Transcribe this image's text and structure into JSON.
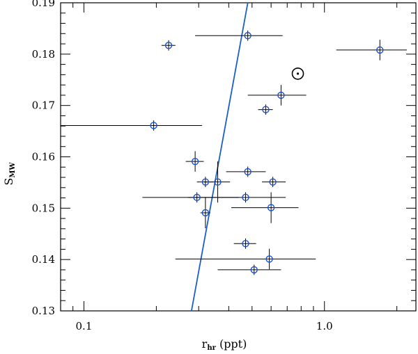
{
  "chart_data": {
    "type": "scatter",
    "title": "",
    "xlabel": "r",
    "xlabel_sub": "hr",
    "xlabel_unit": " (ppt)",
    "ylabel": "S",
    "ylabel_sub": "MW",
    "xscale": "log",
    "xlim": [
      0.08,
      2.4
    ],
    "ylim": [
      0.13,
      0.19
    ],
    "x_ticks": [
      {
        "value": 0.1,
        "label": "0.1"
      },
      {
        "value": 1.0,
        "label": "1.0"
      }
    ],
    "y_ticks": [
      {
        "value": 0.13,
        "label": "0.13"
      },
      {
        "value": 0.14,
        "label": "0.14"
      },
      {
        "value": 0.15,
        "label": "0.15"
      },
      {
        "value": 0.16,
        "label": "0.16"
      },
      {
        "value": 0.17,
        "label": "0.17"
      },
      {
        "value": 0.18,
        "label": "0.18"
      },
      {
        "value": 0.19,
        "label": "0.19"
      }
    ],
    "points": [
      {
        "x": 0.225,
        "y": 0.1817,
        "xlo": 0.21,
        "xhi": 0.24,
        "ylo": 0.1807,
        "yhi": 0.1827
      },
      {
        "x": 0.48,
        "y": 0.1836,
        "xlo": 0.29,
        "xhi": 0.67,
        "ylo": 0.1826,
        "yhi": 0.1846
      },
      {
        "x": 1.7,
        "y": 0.1808,
        "xlo": 1.12,
        "xhi": 2.2,
        "ylo": 0.1788,
        "yhi": 0.1828
      },
      {
        "x": 0.66,
        "y": 0.172,
        "xlo": 0.48,
        "xhi": 0.84,
        "ylo": 0.17,
        "yhi": 0.174
      },
      {
        "x": 0.57,
        "y": 0.1692,
        "xlo": 0.53,
        "xhi": 0.61,
        "ylo": 0.1682,
        "yhi": 0.1702
      },
      {
        "x": 0.195,
        "y": 0.1661,
        "xlo": 0.08,
        "xhi": 0.31,
        "ylo": 0.1651,
        "yhi": 0.1671
      },
      {
        "x": 0.29,
        "y": 0.1591,
        "xlo": 0.265,
        "xhi": 0.315,
        "ylo": 0.1571,
        "yhi": 0.1611
      },
      {
        "x": 0.48,
        "y": 0.1571,
        "xlo": 0.39,
        "xhi": 0.57,
        "ylo": 0.1561,
        "yhi": 0.1581
      },
      {
        "x": 0.32,
        "y": 0.1551,
        "xlo": 0.295,
        "xhi": 0.345,
        "ylo": 0.1541,
        "yhi": 0.1561
      },
      {
        "x": 0.36,
        "y": 0.1551,
        "xlo": 0.315,
        "xhi": 0.405,
        "ylo": 0.1511,
        "yhi": 0.1591
      },
      {
        "x": 0.61,
        "y": 0.1551,
        "xlo": 0.55,
        "xhi": 0.69,
        "ylo": 0.1541,
        "yhi": 0.1561
      },
      {
        "x": 0.295,
        "y": 0.1521,
        "xlo": 0.175,
        "xhi": 0.44,
        "ylo": 0.1511,
        "yhi": 0.1531
      },
      {
        "x": 0.47,
        "y": 0.1521,
        "xlo": 0.27,
        "xhi": 0.69,
        "ylo": 0.1511,
        "yhi": 0.1531
      },
      {
        "x": 0.6,
        "y": 0.1501,
        "xlo": 0.41,
        "xhi": 0.78,
        "ylo": 0.1471,
        "yhi": 0.1531
      },
      {
        "x": 0.32,
        "y": 0.1491,
        "xlo": 0.305,
        "xhi": 0.335,
        "ylo": 0.1461,
        "yhi": 0.1521
      },
      {
        "x": 0.47,
        "y": 0.1431,
        "xlo": 0.42,
        "xhi": 0.52,
        "ylo": 0.1421,
        "yhi": 0.1441
      },
      {
        "x": 0.59,
        "y": 0.1401,
        "xlo": 0.24,
        "xhi": 0.92,
        "ylo": 0.1381,
        "yhi": 0.1421
      },
      {
        "x": 0.51,
        "y": 0.138,
        "xlo": 0.36,
        "xhi": 0.66,
        "ylo": 0.137,
        "yhi": 0.139
      }
    ],
    "fit_line": [
      {
        "x": 0.28,
        "y": 0.13
      },
      {
        "x": 0.48,
        "y": 0.19
      }
    ],
    "sun_marker": {
      "x": 0.775,
      "y": 0.1762
    },
    "colors": {
      "marker": "#1a4fd0",
      "fit_line": "#1a5fc8",
      "error_bar": "#000000",
      "axis": "#000000"
    }
  }
}
